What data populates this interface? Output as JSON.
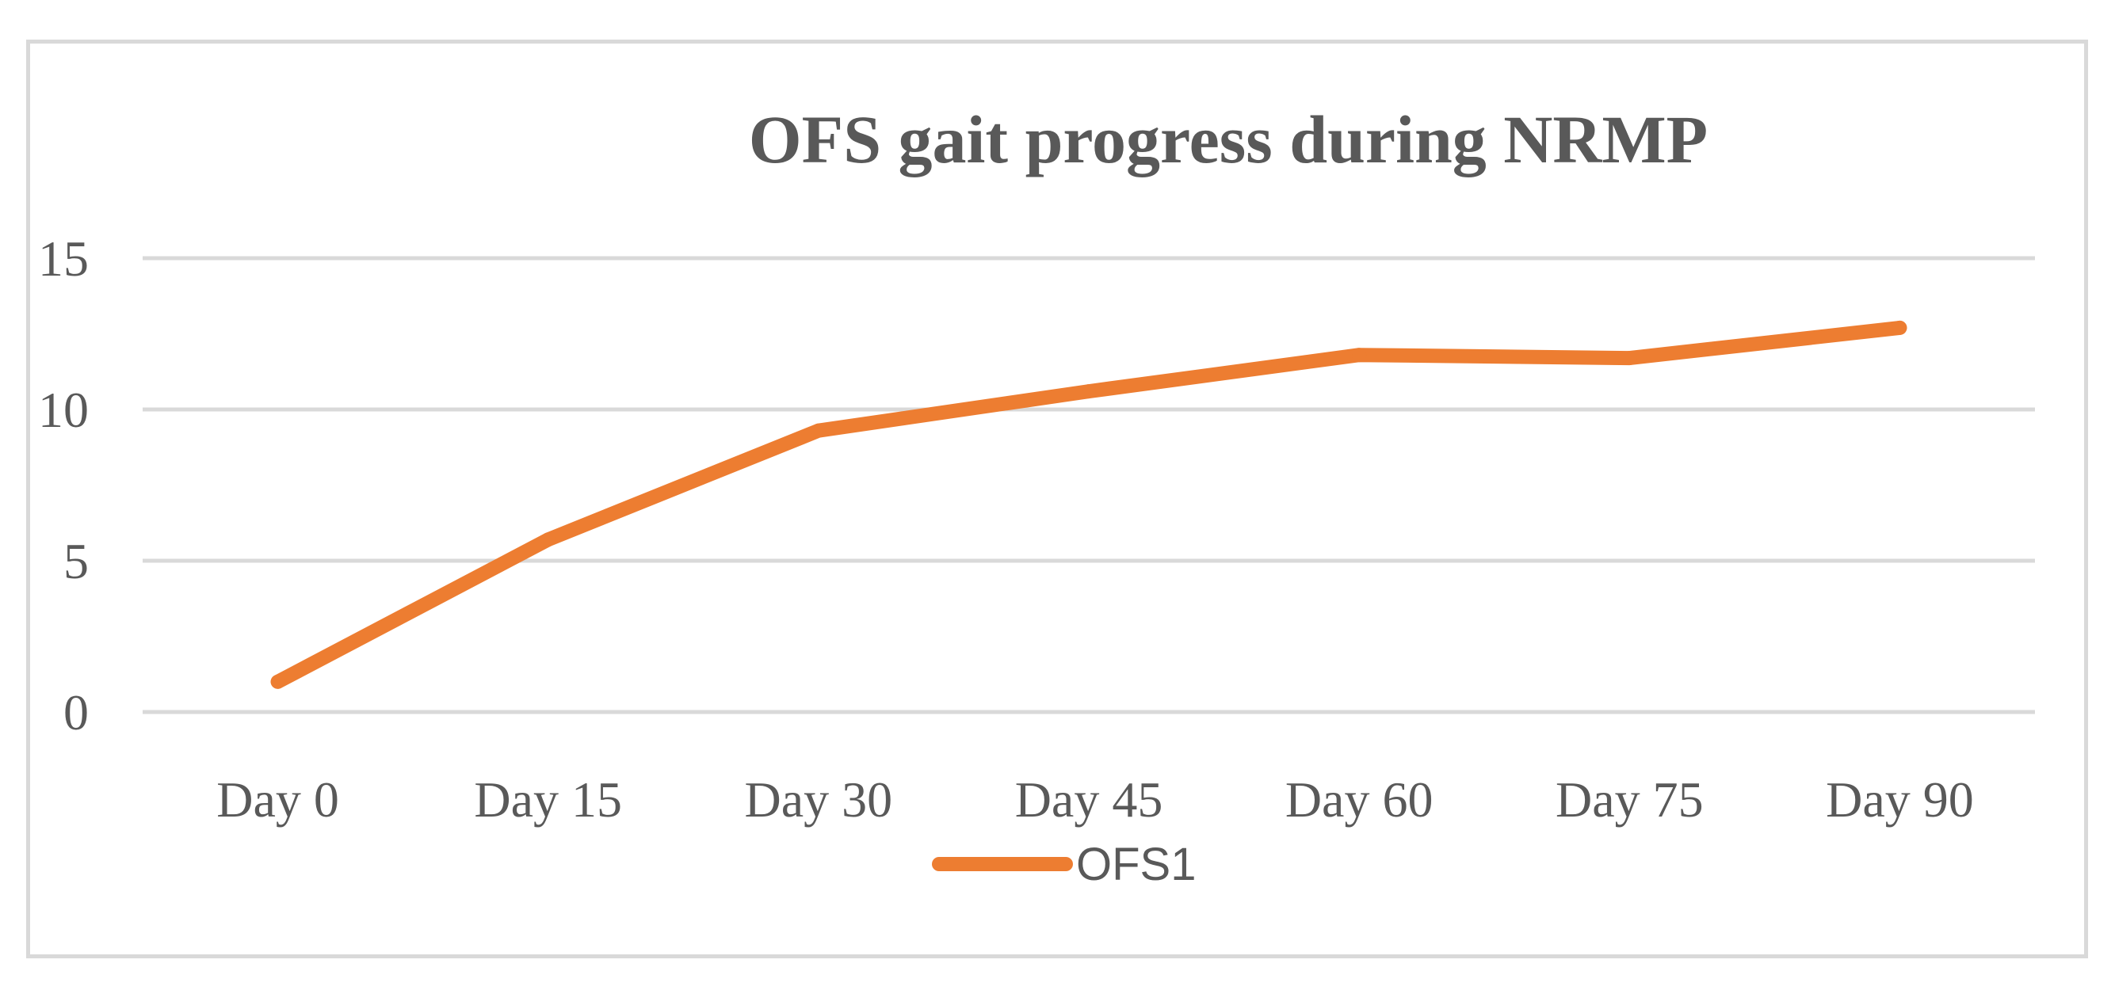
{
  "chart_data": {
    "type": "line",
    "title": "OFS gait progress during NRMP",
    "xlabel": "",
    "ylabel": "",
    "categories": [
      "Day 0",
      "Day 15",
      "Day 30",
      "Day 45",
      "Day 60",
      "Day 75",
      "Day 90"
    ],
    "series": [
      {
        "name": "OFS1",
        "values": [
          1,
          5.7,
          9.3,
          10.6,
          11.8,
          11.7,
          12.7
        ],
        "color": "#ed7d31"
      }
    ],
    "ylim": [
      0,
      15
    ],
    "yticks": [
      "0",
      "5",
      "10",
      "15"
    ],
    "grid": true,
    "legend_position": "bottom"
  }
}
